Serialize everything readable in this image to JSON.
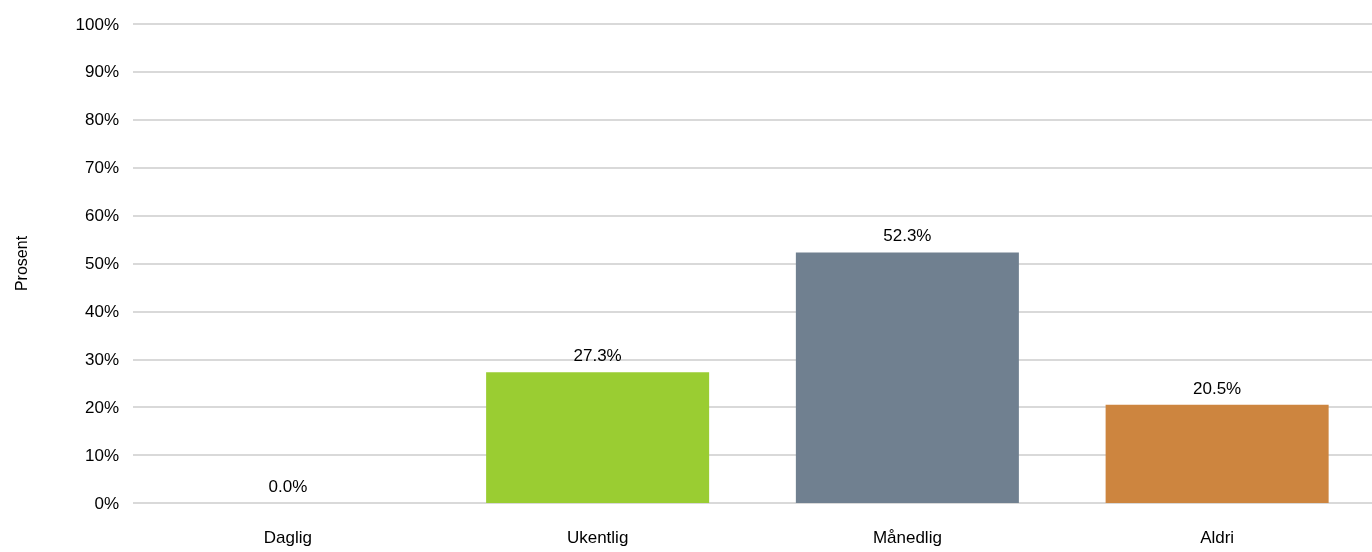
{
  "chart_data": {
    "type": "bar",
    "ylabel": "Prosent",
    "categories": [
      "Daglig",
      "Ukentlig",
      "Månedlig",
      "Aldri"
    ],
    "values": [
      0,
      27.3,
      52.3,
      20.5
    ],
    "colors": [
      null,
      "#9acd32",
      "#708090",
      "#cd853f"
    ],
    "value_labels": [
      "0.0%",
      "27.3%",
      "52.3%",
      "20.5%"
    ],
    "ylim": [
      0,
      100
    ],
    "yticks": [
      {
        "value": 0,
        "label": "0%"
      },
      {
        "value": 10,
        "label": "10%"
      },
      {
        "value": 20,
        "label": "20%"
      },
      {
        "value": 30,
        "label": "30%"
      },
      {
        "value": 40,
        "label": "40%"
      },
      {
        "value": 50,
        "label": "50%"
      },
      {
        "value": 60,
        "label": "60%"
      },
      {
        "value": 70,
        "label": "70%"
      },
      {
        "value": 80,
        "label": "80%"
      },
      {
        "value": 90,
        "label": "90%"
      },
      {
        "value": 100,
        "label": "100%"
      }
    ],
    "grid": "y"
  }
}
